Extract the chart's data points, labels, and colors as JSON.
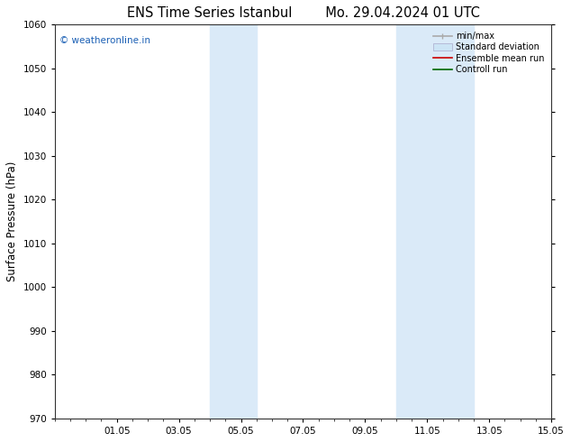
{
  "title_left": "ENS Time Series Istanbul",
  "title_right": "Mo. 29.04.2024 01 UTC",
  "ylabel": "Surface Pressure (hPa)",
  "ylim": [
    970,
    1060
  ],
  "yticks": [
    970,
    980,
    990,
    1000,
    1010,
    1020,
    1030,
    1040,
    1050,
    1060
  ],
  "xtick_labels": [
    "01.05",
    "03.05",
    "05.05",
    "07.05",
    "09.05",
    "11.05",
    "13.05",
    "15.05"
  ],
  "xtick_positions": [
    2,
    4,
    6,
    8,
    10,
    12,
    14,
    16
  ],
  "xlim": [
    0,
    16
  ],
  "shaded_bands": [
    {
      "x_start": 5.0,
      "x_end": 6.5
    },
    {
      "x_start": 11.0,
      "x_end": 13.5
    }
  ],
  "shaded_color": "#daeaf8",
  "watermark_text": "© weatheronline.in",
  "watermark_color": "#1a5fb4",
  "background_color": "#ffffff",
  "spine_color": "#333333",
  "tick_label_fontsize": 7.5,
  "axis_label_fontsize": 8.5,
  "title_fontsize": 10.5
}
